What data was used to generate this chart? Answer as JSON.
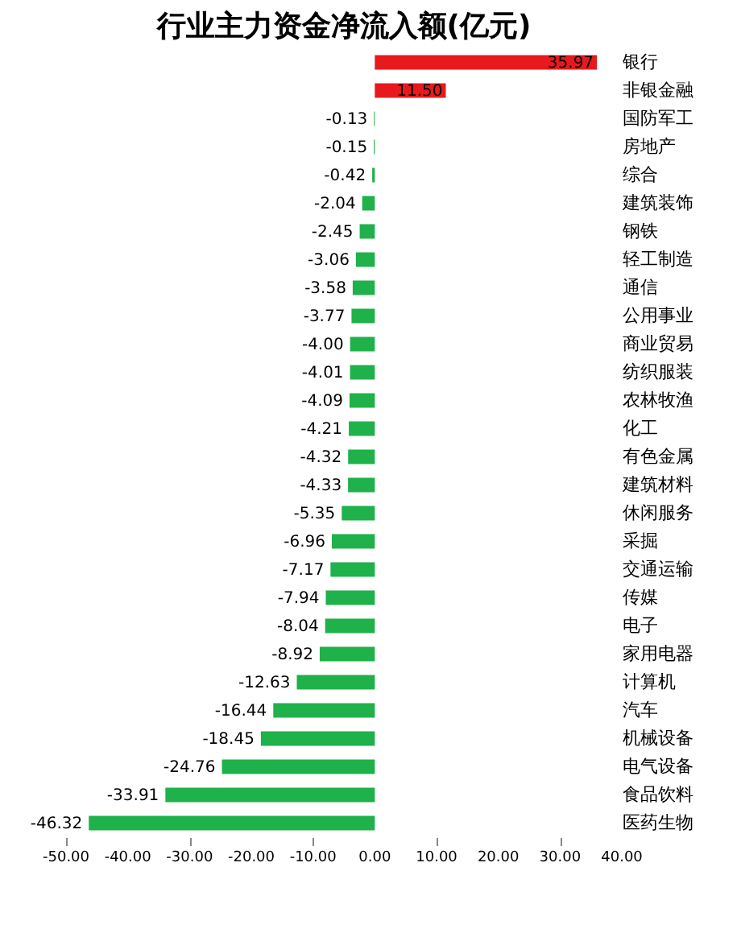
{
  "chart_data": {
    "type": "bar",
    "orientation": "horizontal",
    "title": "行业主力资金净流入额(亿元)",
    "categories": [
      "银行",
      "非银金融",
      "国防军工",
      "房地产",
      "综合",
      "建筑装饰",
      "钢铁",
      "轻工制造",
      "通信",
      "公用事业",
      "商业贸易",
      "纺织服装",
      "农林牧渔",
      "化工",
      "有色金属",
      "建筑材料",
      "休闲服务",
      "采掘",
      "交通运输",
      "传媒",
      "电子",
      "家用电器",
      "计算机",
      "汽车",
      "机械设备",
      "电气设备",
      "食品饮料",
      "医药生物"
    ],
    "values": [
      35.97,
      11.5,
      -0.13,
      -0.15,
      -0.42,
      -2.04,
      -2.45,
      -3.06,
      -3.58,
      -3.77,
      -4.0,
      -4.01,
      -4.09,
      -4.21,
      -4.32,
      -4.33,
      -5.35,
      -6.96,
      -7.17,
      -7.94,
      -8.04,
      -8.92,
      -12.63,
      -16.44,
      -18.45,
      -24.76,
      -33.91,
      -46.32
    ],
    "value_labels": [
      "35.97",
      "11.50",
      "-0.13",
      "-0.15",
      "-0.42",
      "-2.04",
      "-2.45",
      "-3.06",
      "-3.58",
      "-3.77",
      "-4.00",
      "-4.01",
      "-4.09",
      "-4.21",
      "-4.32",
      "-4.33",
      "-5.35",
      "-6.96",
      "-7.17",
      "-7.94",
      "-8.04",
      "-8.92",
      "-12.63",
      "-16.44",
      "-18.45",
      "-24.76",
      "-33.91",
      "-46.32"
    ],
    "colors": [
      "#e8191c",
      "#e8191c",
      "#1fb14a",
      "#1fb14a",
      "#1fb14a",
      "#1fb14a",
      "#1fb14a",
      "#1fb14a",
      "#1fb14a",
      "#1fb14a",
      "#1fb14a",
      "#1fb14a",
      "#1fb14a",
      "#1fb14a",
      "#1fb14a",
      "#1fb14a",
      "#1fb14a",
      "#1fb14a",
      "#1fb14a",
      "#1fb14a",
      "#1fb14a",
      "#1fb14a",
      "#1fb14a",
      "#1fb14a",
      "#1fb14a",
      "#1fb14a",
      "#1fb14a",
      "#1fb14a"
    ],
    "xlim": [
      -50,
      40
    ],
    "xticks": [
      {
        "value": -50,
        "label": "-50.00"
      },
      {
        "value": -40,
        "label": "-40.00"
      },
      {
        "value": -30,
        "label": "-30.00"
      },
      {
        "value": -20,
        "label": "-20.00"
      },
      {
        "value": -10,
        "label": "-10.00"
      },
      {
        "value": 0,
        "label": "0.00"
      },
      {
        "value": 10,
        "label": "10.00"
      },
      {
        "value": 20,
        "label": "20.00"
      },
      {
        "value": 30,
        "label": "30.00"
      },
      {
        "value": 40,
        "label": "40.00"
      }
    ],
    "grid": false
  }
}
